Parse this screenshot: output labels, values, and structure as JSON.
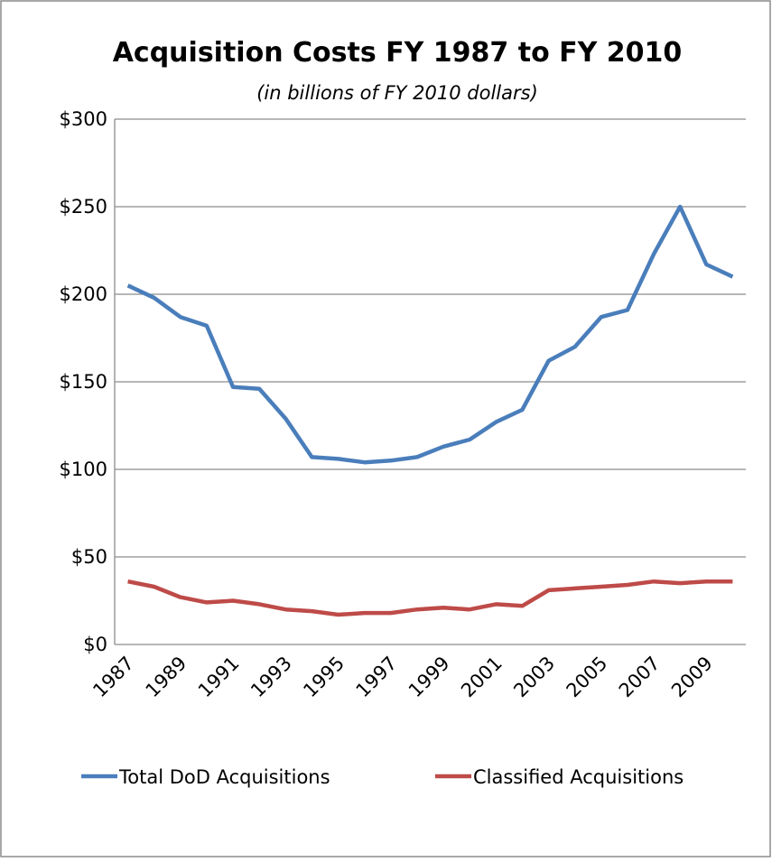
{
  "chart_data": {
    "type": "line",
    "title": "Acquisition Costs FY 1987 to FY 2010",
    "subtitle": "(in billions of FY 2010 dollars)",
    "x": [
      1987,
      1988,
      1989,
      1990,
      1991,
      1992,
      1993,
      1994,
      1995,
      1996,
      1997,
      1998,
      1999,
      2000,
      2001,
      2002,
      2003,
      2004,
      2005,
      2006,
      2007,
      2008,
      2009,
      2010
    ],
    "xlim": [
      1986.5,
      2010.5
    ],
    "xticks": [
      1987,
      1989,
      1991,
      1993,
      1995,
      1997,
      1999,
      2001,
      2003,
      2005,
      2007,
      2009
    ],
    "series": [
      {
        "name": "Total DoD Acquisitions",
        "color": "#4a7ebb",
        "values": [
          205,
          198,
          187,
          182,
          147,
          146,
          129,
          107,
          106,
          104,
          105,
          107,
          113,
          117,
          127,
          134,
          162,
          170,
          187,
          191,
          223,
          250,
          217,
          210
        ]
      },
      {
        "name": "Classified Acquisitions",
        "color": "#be4b48",
        "values": [
          36,
          33,
          27,
          24,
          25,
          23,
          20,
          19,
          17,
          18,
          18,
          20,
          21,
          20,
          23,
          22,
          31,
          32,
          33,
          34,
          36,
          35,
          36,
          36
        ]
      }
    ],
    "ylim": [
      0,
      300
    ],
    "yticks": [
      {
        "value": 0,
        "label": "$0"
      },
      {
        "value": 50,
        "label": "$50"
      },
      {
        "value": 100,
        "label": "$100"
      },
      {
        "value": 150,
        "label": "$150"
      },
      {
        "value": 200,
        "label": "$200"
      },
      {
        "value": 250,
        "label": "$250"
      },
      {
        "value": 300,
        "label": "$300"
      }
    ],
    "grid": true,
    "legend": "bottom"
  }
}
